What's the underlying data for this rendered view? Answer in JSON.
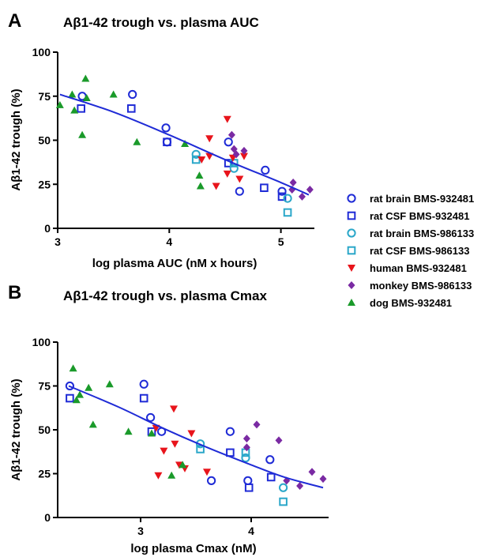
{
  "series_styles": [
    {
      "name": "rat brain BMS-932481",
      "marker": "circle-open",
      "color": "#1f2bd6"
    },
    {
      "name": "rat CSF BMS-932481",
      "marker": "square-open",
      "color": "#1f2bd6"
    },
    {
      "name": "rat brain BMS-986133",
      "marker": "circle-open",
      "color": "#2aa7c9"
    },
    {
      "name": "rat CSF BMS-986133",
      "marker": "square-open",
      "color": "#2aa7c9"
    },
    {
      "name": "human BMS-932481",
      "marker": "triangle-down",
      "color": "#e8141b"
    },
    {
      "name": "monkey BMS-986133",
      "marker": "diamond",
      "color": "#7a2aa3"
    },
    {
      "name": "dog BMS-932481",
      "marker": "triangle-up",
      "color": "#1a9a2a"
    }
  ],
  "fit_color": "#1f2bd6",
  "chart_data": [
    {
      "panel": "A",
      "type": "scatter",
      "title": "Aβ1-42 trough vs. plasma AUC",
      "xlabel": "log plasma AUC (nM x hours)",
      "ylabel": "Aβ1-42 trough (%)",
      "xlim": [
        3,
        5.3
      ],
      "ylim": [
        0,
        100
      ],
      "xticks": [
        3,
        4,
        5
      ],
      "yticks": [
        0,
        25,
        50,
        75,
        100
      ],
      "fit_line": [
        [
          3.02,
          76
        ],
        [
          3.5,
          66
        ],
        [
          4.0,
          53
        ],
        [
          4.5,
          39
        ],
        [
          5.0,
          26
        ],
        [
          5.25,
          19
        ]
      ],
      "series": [
        {
          "name": "rat brain BMS-932481",
          "points": [
            [
              3.22,
              75
            ],
            [
              3.67,
              76
            ],
            [
              3.97,
              57
            ],
            [
              3.98,
              49
            ],
            [
              4.53,
              49
            ],
            [
              4.63,
              21
            ],
            [
              4.86,
              33
            ],
            [
              5.01,
              21
            ]
          ]
        },
        {
          "name": "rat CSF BMS-932481",
          "points": [
            [
              3.21,
              68
            ],
            [
              3.66,
              68
            ],
            [
              3.98,
              49
            ],
            [
              4.53,
              37
            ],
            [
              4.85,
              23
            ],
            [
              5.01,
              18
            ]
          ]
        },
        {
          "name": "rat brain BMS-986133",
          "points": [
            [
              4.24,
              42
            ],
            [
              4.58,
              34
            ],
            [
              5.06,
              17
            ]
          ]
        },
        {
          "name": "rat CSF BMS-986133",
          "points": [
            [
              4.24,
              39
            ],
            [
              4.58,
              37
            ],
            [
              5.06,
              9
            ]
          ]
        },
        {
          "name": "human BMS-932481",
          "points": [
            [
              4.52,
              62
            ],
            [
              4.36,
              51
            ],
            [
              4.36,
              41
            ],
            [
              4.29,
              39
            ],
            [
              4.52,
              31
            ],
            [
              4.63,
              28
            ],
            [
              4.42,
              24
            ],
            [
              4.67,
              41
            ],
            [
              4.57,
              40
            ]
          ]
        },
        {
          "name": "monkey BMS-986133",
          "points": [
            [
              4.56,
              53
            ],
            [
              4.58,
              45
            ],
            [
              4.67,
              44
            ],
            [
              4.6,
              42
            ],
            [
              5.11,
              26
            ],
            [
              5.1,
              22
            ],
            [
              5.19,
              18
            ],
            [
              5.26,
              22
            ]
          ]
        },
        {
          "name": "dog BMS-932481",
          "points": [
            [
              3.25,
              85
            ],
            [
              3.13,
              76
            ],
            [
              3.5,
              76
            ],
            [
              3.26,
              74
            ],
            [
              3.02,
              70
            ],
            [
              3.15,
              67
            ],
            [
              3.22,
              53
            ],
            [
              3.71,
              49
            ],
            [
              4.14,
              48
            ],
            [
              4.27,
              30
            ],
            [
              4.28,
              24
            ]
          ]
        }
      ]
    },
    {
      "panel": "B",
      "type": "scatter",
      "title": "Aβ1-42 trough vs. plasma Cmax",
      "xlabel": "log plasma Cmax (nM)",
      "ylabel": "Aβ1-42 trough (%)",
      "xlim": [
        2.25,
        4.7
      ],
      "ylim": [
        0,
        100
      ],
      "xticks": [
        3,
        4
      ],
      "yticks": [
        0,
        25,
        50,
        75,
        100
      ],
      "fit_line": [
        [
          2.35,
          75
        ],
        [
          2.8,
          63
        ],
        [
          3.2,
          51
        ],
        [
          3.6,
          40
        ],
        [
          4.0,
          30
        ],
        [
          4.3,
          23
        ],
        [
          4.65,
          17
        ]
      ],
      "series": [
        {
          "name": "rat brain BMS-932481",
          "points": [
            [
              2.36,
              75
            ],
            [
              3.03,
              76
            ],
            [
              3.09,
              57
            ],
            [
              3.19,
              49
            ],
            [
              3.64,
              21
            ],
            [
              3.81,
              49
            ],
            [
              3.97,
              21
            ],
            [
              4.17,
              33
            ]
          ]
        },
        {
          "name": "rat CSF BMS-932481",
          "points": [
            [
              2.36,
              68
            ],
            [
              3.03,
              68
            ],
            [
              3.1,
              49
            ],
            [
              3.81,
              37
            ],
            [
              3.98,
              17
            ],
            [
              4.18,
              23
            ]
          ]
        },
        {
          "name": "rat brain BMS-986133",
          "points": [
            [
              3.54,
              42
            ],
            [
              3.95,
              34
            ],
            [
              4.29,
              17
            ]
          ]
        },
        {
          "name": "rat CSF BMS-986133",
          "points": [
            [
              3.54,
              39
            ],
            [
              3.95,
              37
            ],
            [
              4.29,
              9
            ]
          ]
        },
        {
          "name": "human BMS-932481",
          "points": [
            [
              3.3,
              62
            ],
            [
              3.14,
              51
            ],
            [
              3.46,
              48
            ],
            [
              3.31,
              42
            ],
            [
              3.21,
              38
            ],
            [
              3.35,
              30
            ],
            [
              3.4,
              28
            ],
            [
              3.16,
              24
            ],
            [
              3.6,
              26
            ]
          ]
        },
        {
          "name": "monkey BMS-986133",
          "points": [
            [
              4.05,
              53
            ],
            [
              3.96,
              45
            ],
            [
              4.25,
              44
            ],
            [
              3.96,
              40
            ],
            [
              4.32,
              21
            ],
            [
              4.44,
              18
            ],
            [
              4.55,
              26
            ],
            [
              4.65,
              22
            ]
          ]
        },
        {
          "name": "dog BMS-932481",
          "points": [
            [
              2.39,
              85
            ],
            [
              2.72,
              76
            ],
            [
              2.53,
              74
            ],
            [
              2.45,
              70
            ],
            [
              2.42,
              67
            ],
            [
              2.57,
              53
            ],
            [
              2.89,
              49
            ],
            [
              3.28,
              24
            ],
            [
              3.38,
              30
            ],
            [
              3.1,
              48
            ]
          ]
        }
      ]
    }
  ]
}
